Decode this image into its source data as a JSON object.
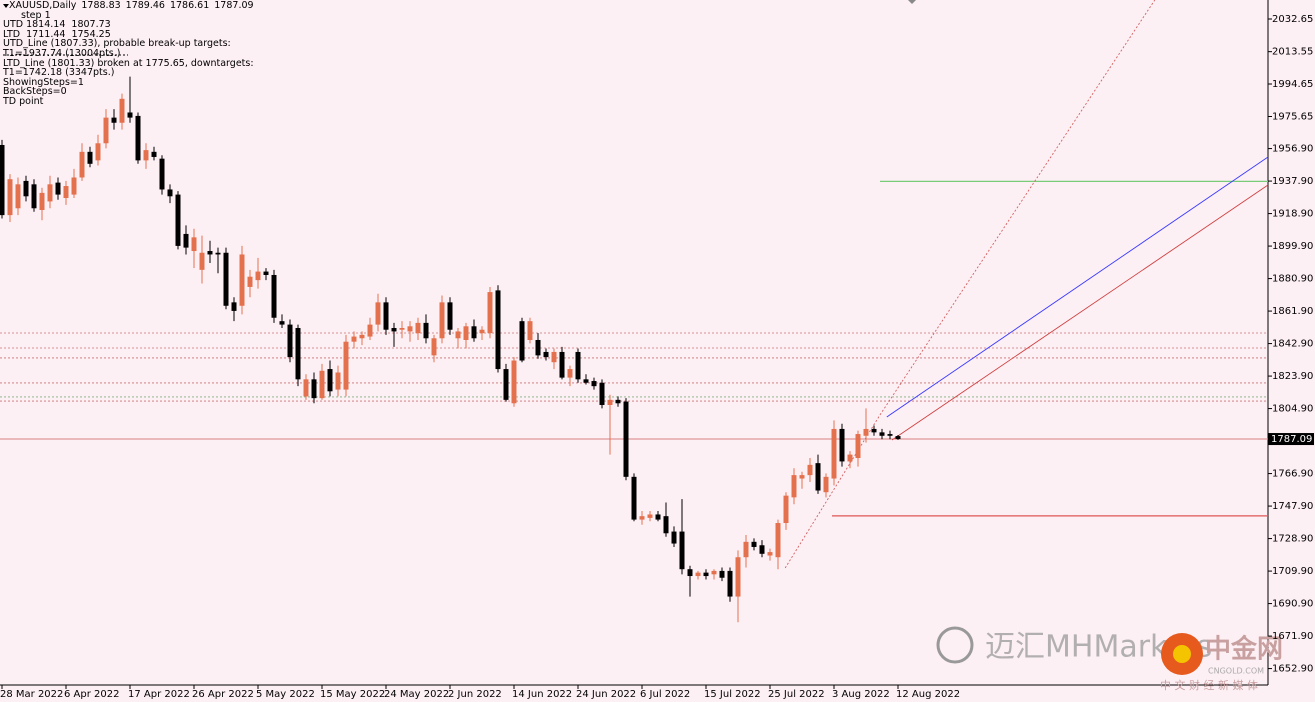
{
  "chart_data": {
    "type": "candlestick",
    "title": "XAUUSD,Daily",
    "indicator_lines": [
      "step 1",
      "UTD 1814.14  1807.73",
      "LTD  1711.44  1754.25",
      "UTD_Line (1807.33), probable break-up targets:",
      "T1=1937.74 (13004pts.)",
      "LTD_Line (1801.33) broken at 1775.65, downtargets:",
      "T1=1742.18 (3347pts.)",
      "ShowingSteps=1",
      "BackSteps=0",
      "TD point"
    ],
    "watermark": {
      "brand": "迈汇MHMarkets",
      "logo": "中金网",
      "site": "CNGOLD.COM",
      "tagline": "中 文 财 经 新 媒 体"
    },
    "bull_color": "#e4714e",
    "bear_color": "#000000",
    "categories": [
      "28 Mar 2022",
      null,
      null,
      null,
      null,
      null,
      null,
      null,
      "6 Apr 2022",
      null,
      null,
      null,
      null,
      null,
      null,
      null,
      "17 Apr 2022",
      null,
      null,
      null,
      null,
      null,
      null,
      null,
      "26 Apr 2022",
      null,
      null,
      null,
      null,
      null,
      null,
      null,
      "5 May 2022",
      null,
      null,
      null,
      null,
      null,
      null,
      null,
      "15 May 2022",
      null,
      null,
      null,
      null,
      null,
      null,
      null,
      "24 May 2022",
      null,
      null,
      null,
      null,
      null,
      null,
      null,
      "2 Jun 2022",
      null,
      null,
      null,
      null,
      null,
      null,
      null,
      "14 Jun 2022",
      null,
      null,
      null,
      null,
      null,
      null,
      null,
      "24 Jun 2022",
      null,
      null,
      null,
      null,
      null,
      null,
      null,
      "6 Jul 2022",
      null,
      null,
      null,
      null,
      null,
      null,
      null,
      "15 Jul 2022",
      null,
      null,
      null,
      null,
      null,
      null,
      null,
      "25 Jul 2022",
      null,
      null,
      null,
      null,
      null,
      null,
      null,
      "3 Aug 2022",
      null,
      null,
      null,
      null,
      null,
      null,
      null,
      "12 Aug 2022"
    ],
    "ohlc": [
      [
        1959,
        1962,
        1916,
        1918
      ],
      [
        1918,
        1942,
        1914,
        1939
      ],
      [
        1922,
        1940,
        1918,
        1936
      ],
      [
        1938,
        1941,
        1926,
        1929
      ],
      [
        1936,
        1939,
        1920,
        1922
      ],
      [
        1921,
        1934,
        1915,
        1931
      ],
      [
        1926,
        1941,
        1922,
        1936
      ],
      [
        1937,
        1940,
        1927,
        1930
      ],
      [
        1928,
        1938,
        1924,
        1935
      ],
      [
        1930,
        1945,
        1928,
        1940
      ],
      [
        1940,
        1960,
        1938,
        1955
      ],
      [
        1955,
        1958,
        1946,
        1948
      ],
      [
        1950,
        1965,
        1947,
        1960
      ],
      [
        1960,
        1980,
        1957,
        1975
      ],
      [
        1975,
        1980,
        1968,
        1972
      ],
      [
        1972,
        1989,
        1968,
        1986
      ],
      [
        1978,
        1999,
        1972,
        1975
      ],
      [
        1976,
        1978,
        1948,
        1950
      ],
      [
        1950,
        1960,
        1945,
        1956
      ],
      [
        1955,
        1958,
        1950,
        1952
      ],
      [
        1951,
        1953,
        1930,
        1933
      ],
      [
        1933,
        1936,
        1925,
        1929
      ],
      [
        1930,
        1932,
        1898,
        1900
      ],
      [
        1907,
        1912,
        1895,
        1899
      ],
      [
        1897,
        1910,
        1887,
        1905
      ],
      [
        1886,
        1906,
        1878,
        1896
      ],
      [
        1897,
        1903,
        1890,
        1895
      ],
      [
        1896,
        1899,
        1884,
        1895
      ],
      [
        1896,
        1899,
        1863,
        1865
      ],
      [
        1867,
        1870,
        1856,
        1862
      ],
      [
        1865,
        1900,
        1860,
        1895
      ],
      [
        1876,
        1886,
        1870,
        1882
      ],
      [
        1880,
        1893,
        1875,
        1885
      ],
      [
        1885,
        1887,
        1880,
        1883
      ],
      [
        1883,
        1886,
        1855,
        1858
      ],
      [
        1856,
        1860,
        1852,
        1854
      ],
      [
        1854,
        1857,
        1832,
        1835
      ],
      [
        1852,
        1854,
        1818,
        1822
      ],
      [
        1812,
        1825,
        1810,
        1822
      ],
      [
        1822,
        1826,
        1808,
        1811
      ],
      [
        1811,
        1831,
        1810,
        1827
      ],
      [
        1828,
        1833,
        1812,
        1815
      ],
      [
        1816,
        1830,
        1812,
        1826
      ],
      [
        1816,
        1848,
        1812,
        1844
      ],
      [
        1844,
        1850,
        1840,
        1847
      ],
      [
        1846,
        1850,
        1842,
        1848
      ],
      [
        1847,
        1858,
        1845,
        1854
      ],
      [
        1854,
        1872,
        1850,
        1867
      ],
      [
        1867,
        1870,
        1848,
        1851
      ],
      [
        1852,
        1855,
        1841,
        1850
      ],
      [
        1851,
        1856,
        1846,
        1852
      ],
      [
        1850,
        1856,
        1844,
        1853
      ],
      [
        1849,
        1858,
        1845,
        1855
      ],
      [
        1855,
        1860,
        1843,
        1846
      ],
      [
        1836,
        1848,
        1832,
        1846
      ],
      [
        1846,
        1871,
        1843,
        1867
      ],
      [
        1867,
        1870,
        1848,
        1851
      ],
      [
        1846,
        1852,
        1840,
        1850
      ],
      [
        1845,
        1855,
        1840,
        1853
      ],
      [
        1853,
        1857,
        1844,
        1846
      ],
      [
        1849,
        1853,
        1845,
        1851
      ],
      [
        1849,
        1876,
        1846,
        1873
      ],
      [
        1874,
        1877,
        1826,
        1828
      ],
      [
        1828,
        1831,
        1809,
        1810
      ],
      [
        1808,
        1835,
        1806,
        1833
      ],
      [
        1856,
        1858,
        1832,
        1833
      ],
      [
        1845,
        1858,
        1843,
        1856
      ],
      [
        1845,
        1849,
        1834,
        1836
      ],
      [
        1838,
        1840,
        1833,
        1835
      ],
      [
        1832,
        1840,
        1828,
        1838
      ],
      [
        1838,
        1841,
        1822,
        1823
      ],
      [
        1823,
        1830,
        1818,
        1828
      ],
      [
        1838,
        1840,
        1820,
        1822
      ],
      [
        1822,
        1825,
        1819,
        1820
      ],
      [
        1821,
        1823,
        1816,
        1818
      ],
      [
        1820,
        1822,
        1805,
        1807
      ],
      [
        1807,
        1813,
        1778,
        1810
      ],
      [
        1810,
        1812,
        1806,
        1808
      ],
      [
        1809,
        1811,
        1763,
        1765
      ],
      [
        1765,
        1767,
        1739,
        1740
      ],
      [
        1740,
        1745,
        1737,
        1742
      ],
      [
        1741,
        1745,
        1739,
        1743
      ],
      [
        1743,
        1745,
        1739,
        1740
      ],
      [
        1742,
        1750,
        1730,
        1732
      ],
      [
        1733,
        1736,
        1724,
        1726
      ],
      [
        1733,
        1752,
        1708,
        1711
      ],
      [
        1711,
        1713,
        1695,
        1707
      ],
      [
        1707,
        1710,
        1705,
        1709
      ],
      [
        1709,
        1711,
        1705,
        1707
      ],
      [
        1708,
        1711,
        1705,
        1710
      ],
      [
        1710,
        1712,
        1704,
        1706
      ],
      [
        1710,
        1712,
        1692,
        1695
      ],
      [
        1695,
        1722,
        1680,
        1718
      ],
      [
        1718,
        1731,
        1712,
        1727
      ],
      [
        1727,
        1729,
        1722,
        1724
      ],
      [
        1725,
        1728,
        1718,
        1720
      ],
      [
        1719,
        1723,
        1716,
        1721
      ],
      [
        1718,
        1740,
        1711,
        1738
      ],
      [
        1738,
        1756,
        1734,
        1754
      ],
      [
        1753,
        1770,
        1749,
        1766
      ],
      [
        1764,
        1768,
        1758,
        1766
      ],
      [
        1766,
        1776,
        1762,
        1772
      ],
      [
        1773,
        1778,
        1755,
        1757
      ],
      [
        1756,
        1767,
        1753,
        1765
      ],
      [
        1764,
        1798,
        1760,
        1793
      ],
      [
        1793,
        1796,
        1771,
        1774
      ],
      [
        1774,
        1780,
        1770,
        1778
      ],
      [
        1776,
        1792,
        1771,
        1790
      ],
      [
        1789,
        1805,
        1785,
        1793
      ],
      [
        1793,
        1795,
        1789,
        1791
      ],
      [
        1791,
        1793,
        1787,
        1789
      ],
      [
        1790,
        1792,
        1787,
        1789
      ],
      [
        1788.83,
        1789.46,
        1786.61,
        1787.09
      ]
    ],
    "xlim": [
      -0.25,
      158.25
    ],
    "ylim": [
      1643.3,
      2043.76
    ],
    "yticks": [
      2032.65,
      2013.55,
      1994.65,
      1975.65,
      {
        "value": 1956.9,
        "label": "1956.90"
      },
      {
        "value": 1937.9,
        "label": "1937.90"
      },
      {
        "value": 1918.9,
        "label": "1918.90"
      },
      {
        "value": 1899.9,
        "label": "1899.90"
      },
      {
        "value": 1880.9,
        "label": "1880.90"
      },
      {
        "value": 1861.9,
        "label": "1861.90"
      },
      {
        "value": 1842.9,
        "label": "1842.90"
      },
      {
        "value": 1823.9,
        "label": "1823.90"
      },
      {
        "value": 1804.9,
        "label": "1804.90"
      },
      {
        "value": 1766.9,
        "label": "1766.90"
      },
      {
        "value": 1747.9,
        "label": "1747.90"
      },
      {
        "value": 1728.9,
        "label": "1728.90"
      },
      {
        "value": 1709.9,
        "label": "1709.90"
      },
      {
        "value": 1690.9,
        "label": "1690.90"
      },
      {
        "value": 1671.9,
        "label": "1671.90"
      },
      {
        "value": 1652.9,
        "label": "1652.90"
      }
    ],
    "last_price_line": true,
    "levels": [
      {
        "value": 1849.1,
        "color": "#c87070",
        "dash": true
      },
      {
        "value": 1840.3,
        "color": "#c87070",
        "dash": true
      },
      {
        "value": 1834.5,
        "color": "#c87070",
        "dash": true
      },
      {
        "value": 1819.9,
        "color": "#c87070",
        "dash": true
      },
      {
        "value": 1811.7,
        "color": "#7fb07f",
        "dash": true
      },
      {
        "value": 1809.3,
        "color": "#c87070",
        "dash": true
      },
      {
        "value": 1937.74,
        "color": "#78cc78",
        "dash": false,
        "from": 109.75
      },
      {
        "value": 1742.18,
        "color": "#e05555",
        "dash": false,
        "from": 103.75
      }
    ],
    "trendlines": [
      {
        "points": [
          [
            110.6,
            1800
          ],
          [
            158.25,
            1952
          ]
        ],
        "color": "#3a3aff",
        "dash": false
      },
      {
        "points": [
          [
            111.25,
            1786.5
          ],
          [
            158.25,
            1935.6
          ]
        ],
        "color": "#d04040",
        "dash": false
      },
      {
        "points": [
          [
            109.75,
            1801.2
          ],
          [
            144.1,
            2043.76
          ]
        ],
        "color": "#d06060",
        "dash": true
      },
      {
        "points": [
          [
            97.9,
            1711.7
          ],
          [
            109.75,
            1801.2
          ]
        ],
        "color": "#d06060",
        "dash": true
      }
    ]
  }
}
